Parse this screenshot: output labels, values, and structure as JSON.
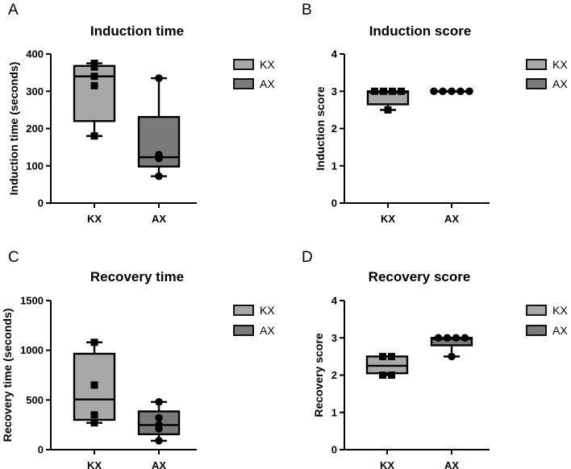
{
  "chart_data": [
    {
      "type": "box",
      "panel": "A",
      "title": "Induction time",
      "xlabel": "",
      "ylabel": "Induction time (seconds)",
      "ylim": [
        0,
        400
      ],
      "yticks": [
        0,
        100,
        200,
        300,
        400
      ],
      "categories": [
        "KX",
        "AX"
      ],
      "legend": [
        "KX",
        "AX"
      ],
      "series": [
        {
          "name": "KX",
          "color": "#a8a8a8",
          "marker": "square",
          "min": 180,
          "q1": 220,
          "median": 340,
          "q3": 368,
          "max": 375,
          "points": [
            180,
            315,
            340,
            365,
            375
          ]
        },
        {
          "name": "AX",
          "color": "#7a7a7a",
          "marker": "circle",
          "min": 72,
          "q1": 98,
          "median": 123,
          "q3": 231,
          "max": 335,
          "points": [
            72,
            120,
            125,
            130,
            335
          ]
        }
      ]
    },
    {
      "type": "box",
      "panel": "B",
      "title": "Induction score",
      "xlabel": "",
      "ylabel": "Induction score",
      "ylim": [
        0,
        4
      ],
      "yticks": [
        0,
        1,
        2,
        3,
        4
      ],
      "categories": [
        "KX",
        "AX"
      ],
      "legend": [
        "KX",
        "AX"
      ],
      "series": [
        {
          "name": "KX",
          "color": "#a8a8a8",
          "marker": "square",
          "min": 2.5,
          "q1": 2.65,
          "median": 2.97,
          "q3": 3.0,
          "max": 3.0,
          "points": [
            2.5,
            3,
            3,
            3,
            3
          ]
        },
        {
          "name": "AX",
          "color": "#7a7a7a",
          "marker": "circle",
          "min": 3,
          "q1": 3,
          "median": 3,
          "q3": 3,
          "max": 3,
          "points": [
            3,
            3,
            3,
            3,
            3
          ]
        }
      ]
    },
    {
      "type": "box",
      "panel": "C",
      "title": "Recovery time",
      "xlabel": "",
      "ylabel": "Recovery time (seconds)",
      "ylim": [
        0,
        1500
      ],
      "yticks": [
        0,
        500,
        1000,
        1500
      ],
      "categories": [
        "KX",
        "AX"
      ],
      "legend": [
        "KX",
        "AX"
      ],
      "series": [
        {
          "name": "KX",
          "color": "#a8a8a8",
          "marker": "square",
          "min": 270,
          "q1": 300,
          "median": 505,
          "q3": 965,
          "max": 1080,
          "points": [
            270,
            350,
            650,
            1080
          ]
        },
        {
          "name": "AX",
          "color": "#7a7a7a",
          "marker": "circle",
          "min": 90,
          "q1": 155,
          "median": 248,
          "q3": 385,
          "max": 480,
          "points": [
            90,
            210,
            250,
            320,
            480
          ]
        }
      ]
    },
    {
      "type": "box",
      "panel": "D",
      "title": "Recovery score",
      "xlabel": "",
      "ylabel": "Recovery score",
      "ylim": [
        0,
        4
      ],
      "yticks": [
        0,
        1,
        2,
        3,
        4
      ],
      "categories": [
        "KX",
        "AX"
      ],
      "legend": [
        "KX",
        "AX"
      ],
      "series": [
        {
          "name": "KX",
          "color": "#a8a8a8",
          "marker": "square",
          "min": 2,
          "q1": 2.05,
          "median": 2.25,
          "q3": 2.5,
          "max": 2.5,
          "points": [
            2,
            2,
            2.5,
            2.5
          ]
        },
        {
          "name": "AX",
          "color": "#7a7a7a",
          "marker": "circle",
          "min": 2.5,
          "q1": 2.8,
          "median": 2.97,
          "q3": 3.0,
          "max": 3.0,
          "points": [
            2.5,
            3,
            3,
            3,
            3
          ]
        }
      ]
    }
  ]
}
